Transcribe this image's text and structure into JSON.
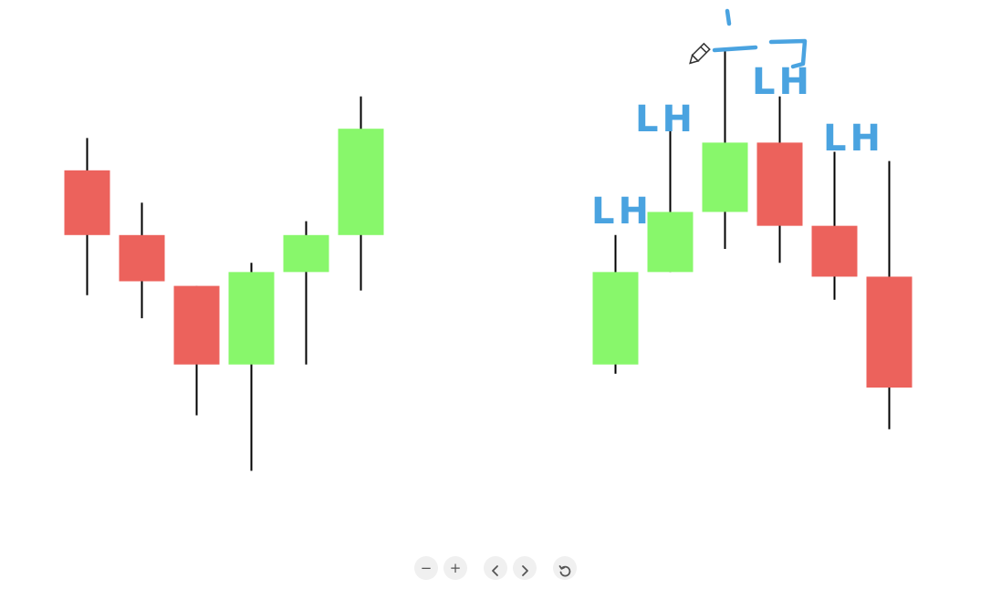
{
  "chart_data": [
    {
      "type": "candlestick",
      "title": "",
      "xlabel": "",
      "ylabel": "",
      "ylim": [
        0,
        100
      ],
      "grid": false,
      "legend": "none",
      "colors": {
        "up": "#88f76b",
        "down": "#ec625c",
        "wick": "#000000"
      },
      "series": [
        {
          "open": 74,
          "close": 60,
          "high": 81,
          "low": 47
        },
        {
          "open": 60,
          "close": 50,
          "high": 67,
          "low": 42
        },
        {
          "open": 49,
          "close": 32,
          "high": 49,
          "low": 21
        },
        {
          "open": 32,
          "close": 52,
          "high": 54,
          "low": 9
        },
        {
          "open": 52,
          "close": 60,
          "high": 63,
          "low": 32
        },
        {
          "open": 60,
          "close": 83,
          "high": 90,
          "low": 48
        }
      ]
    },
    {
      "type": "candlestick",
      "title": "",
      "xlabel": "",
      "ylabel": "",
      "ylim": [
        0,
        100
      ],
      "grid": false,
      "legend": "none",
      "colors": {
        "up": "#88f76b",
        "down": "#ec625c",
        "wick": "#000000"
      },
      "series": [
        {
          "open": 32,
          "close": 52,
          "high": 60,
          "low": 30
        },
        {
          "open": 52,
          "close": 65,
          "high": 84,
          "low": 52
        },
        {
          "open": 65,
          "close": 80,
          "high": 100,
          "low": 57
        },
        {
          "open": 80,
          "close": 62,
          "high": 90,
          "low": 54
        },
        {
          "open": 62,
          "close": 51,
          "high": 78,
          "low": 46
        },
        {
          "open": 51,
          "close": 27,
          "high": 76,
          "low": 18
        }
      ],
      "annotations": [
        {
          "text": "LH",
          "candle": 0
        },
        {
          "text": "LH",
          "candle": 1
        },
        {
          "text": "LH",
          "candle": 3
        },
        {
          "text": "LH",
          "candle": 4
        }
      ]
    }
  ],
  "icons": {
    "pencil": "pencil-cursor-icon",
    "zoom_out": "minus-icon",
    "zoom_in": "plus-icon",
    "prev": "chevron-left-icon",
    "next": "chevron-right-icon",
    "reset": "rotate-icon"
  },
  "toolbar": {
    "zoom_out": "−",
    "zoom_in": "+"
  }
}
